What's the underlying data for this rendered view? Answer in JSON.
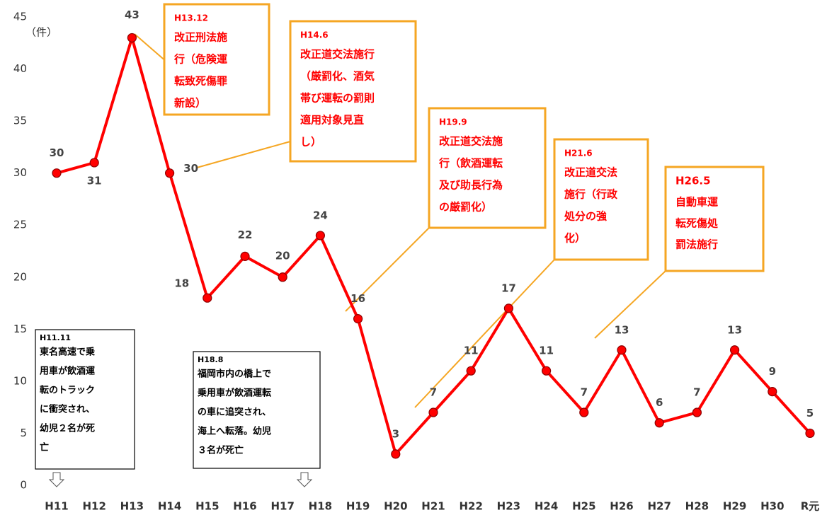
{
  "chart_data": {
    "type": "line",
    "y_unit": "（件）",
    "categories": [
      "H11",
      "H12",
      "H13",
      "H14",
      "H15",
      "H16",
      "H17",
      "H18",
      "H19",
      "H20",
      "H21",
      "H22",
      "H23",
      "H24",
      "H25",
      "H26",
      "H27",
      "H28",
      "H29",
      "H30",
      "R元"
    ],
    "values": [
      30,
      31,
      43,
      30,
      18,
      22,
      20,
      24,
      16,
      3,
      7,
      11,
      17,
      11,
      7,
      13,
      6,
      7,
      13,
      9,
      5
    ],
    "color": "#ff0000",
    "ylim": [
      0,
      45
    ],
    "yticks": [
      0,
      5,
      10,
      15,
      20,
      25,
      30,
      35,
      40,
      45
    ],
    "law_annotations": [
      {
        "title": "H13.12",
        "lines": [
          "改正刑法施",
          "行（危険運",
          "転致死傷罪",
          "新設）"
        ]
      },
      {
        "title": "H14.6",
        "lines": [
          "改正道交法施行",
          "（厳罰化、酒気",
          "帯び運転の罰則",
          "適用対象見直",
          "し）"
        ]
      },
      {
        "title": "H19.9",
        "lines": [
          "改正道交法施",
          "行（飲酒運転",
          "及び助長行為",
          "の厳罰化）"
        ]
      },
      {
        "title": "H21.6",
        "lines": [
          "改正道交法",
          "施行（行政",
          "処分の強",
          "化）"
        ]
      },
      {
        "title": "H26.5",
        "lines": [
          "自動車運",
          "転死傷処",
          "罰法施行"
        ]
      }
    ],
    "incident_annotations": [
      {
        "title": "H11.11",
        "lines": [
          "東名高速で乗",
          "用車が飲酒運",
          "転のトラック",
          "に衝突され、",
          "幼児２名が死",
          "亡"
        ]
      },
      {
        "title": "H18.8",
        "lines": [
          "福岡市内の橋上で",
          "乗用車が飲酒運転",
          "の車に追突され、",
          "海上へ転落。幼児",
          "３名が死亡"
        ]
      }
    ]
  }
}
